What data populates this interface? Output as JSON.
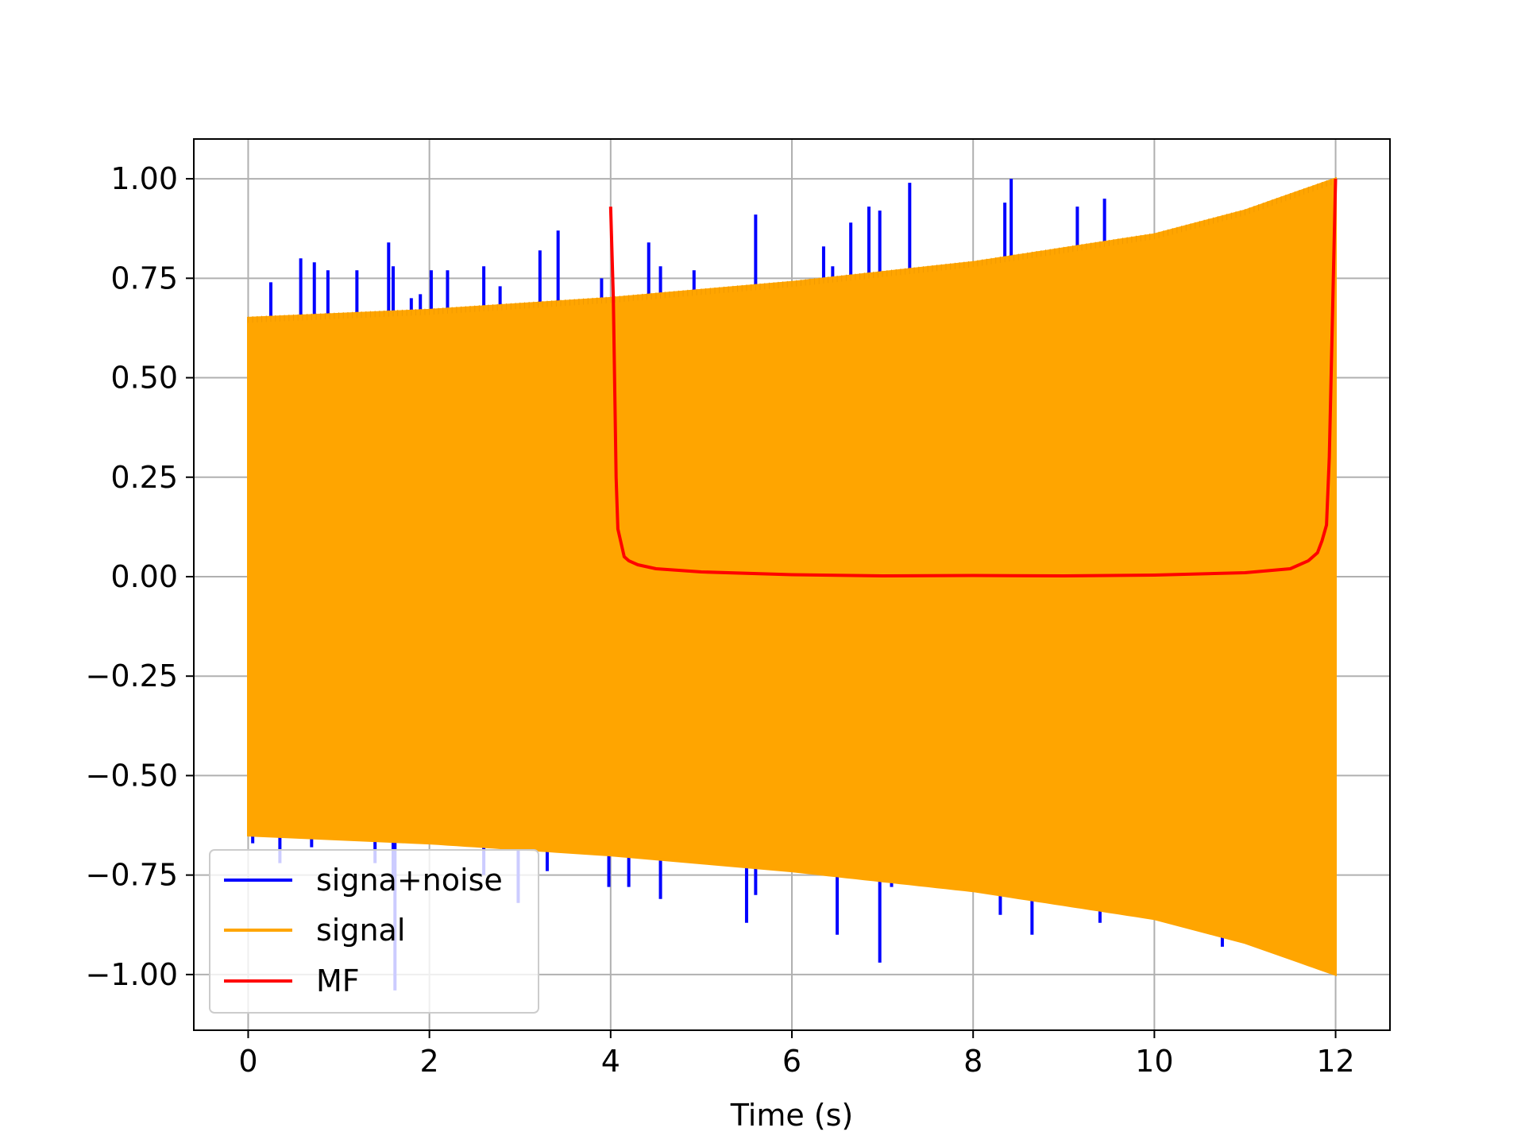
{
  "chart_data": {
    "type": "line",
    "title": "",
    "xlabel": "Time (s)",
    "ylabel": "",
    "xlim": [
      -0.6,
      12.6
    ],
    "ylim": [
      -1.14,
      1.1
    ],
    "xticks": [
      0,
      2,
      4,
      6,
      8,
      10,
      12
    ],
    "xtick_labels": [
      "0",
      "2",
      "4",
      "6",
      "8",
      "10",
      "12"
    ],
    "yticks": [
      1.0,
      0.75,
      0.5,
      0.25,
      0.0,
      -0.25,
      -0.5,
      -0.75,
      -1.0
    ],
    "ytick_labels": [
      "1.00",
      "0.75",
      "0.50",
      "0.25",
      "0.00",
      "−0.25",
      "−0.50",
      "−0.75",
      "−1.00"
    ],
    "grid": true,
    "legend_position": "lower-left",
    "series": [
      {
        "name": "signa+noise",
        "color": "#0000ff",
        "description_values": "impulsive noise spikes on top of the signal envelope",
        "spikes": [
          [
            0.25,
            0.74
          ],
          [
            0.58,
            0.8
          ],
          [
            0.73,
            0.79
          ],
          [
            0.88,
            0.77
          ],
          [
            1.2,
            0.77
          ],
          [
            1.55,
            0.84
          ],
          [
            1.6,
            0.78
          ],
          [
            1.8,
            0.7
          ],
          [
            1.9,
            0.71
          ],
          [
            2.02,
            0.77
          ],
          [
            2.2,
            0.77
          ],
          [
            2.6,
            0.78
          ],
          [
            2.78,
            0.73
          ],
          [
            3.22,
            0.82
          ],
          [
            3.42,
            0.87
          ],
          [
            3.9,
            0.75
          ],
          [
            4.42,
            0.84
          ],
          [
            4.55,
            0.78
          ],
          [
            4.92,
            0.77
          ],
          [
            5.6,
            0.91
          ],
          [
            6.35,
            0.83
          ],
          [
            6.45,
            0.78
          ],
          [
            6.65,
            0.89
          ],
          [
            6.85,
            0.93
          ],
          [
            6.97,
            0.92
          ],
          [
            7.3,
            0.99
          ],
          [
            8.35,
            0.94
          ],
          [
            8.42,
            1.0
          ],
          [
            9.15,
            0.93
          ],
          [
            9.45,
            0.95
          ],
          [
            0.05,
            -0.67
          ],
          [
            0.35,
            -0.72
          ],
          [
            0.7,
            -0.68
          ],
          [
            1.4,
            -0.72
          ],
          [
            1.6,
            -0.78
          ],
          [
            1.62,
            -1.04
          ],
          [
            2.6,
            -0.75
          ],
          [
            2.98,
            -0.82
          ],
          [
            3.3,
            -0.74
          ],
          [
            3.98,
            -0.78
          ],
          [
            4.2,
            -0.78
          ],
          [
            4.55,
            -0.81
          ],
          [
            5.5,
            -0.87
          ],
          [
            5.6,
            -0.8
          ],
          [
            6.5,
            -0.9
          ],
          [
            6.97,
            -0.97
          ],
          [
            7.1,
            -0.78
          ],
          [
            8.3,
            -0.85
          ],
          [
            8.65,
            -0.9
          ],
          [
            9.4,
            -0.87
          ],
          [
            10.75,
            -0.93
          ]
        ]
      },
      {
        "name": "signal",
        "color": "#ffa500",
        "x_range": [
          0,
          12
        ],
        "envelope": {
          "x": [
            0,
            2,
            4,
            6,
            8,
            10,
            11,
            12
          ],
          "amplitude": [
            0.65,
            0.67,
            0.7,
            0.74,
            0.79,
            0.86,
            0.92,
            1.0
          ]
        }
      },
      {
        "name": "MF",
        "color": "#ff0000",
        "x": [
          4.0,
          4.03,
          4.06,
          4.08,
          4.1,
          4.15,
          4.2,
          4.3,
          4.5,
          5.0,
          6.0,
          7.0,
          8.0,
          9.0,
          10.0,
          11.0,
          11.5,
          11.7,
          11.8,
          11.85,
          11.9,
          11.93,
          11.96,
          12.0
        ],
        "y": [
          0.93,
          0.7,
          0.25,
          0.12,
          0.1,
          0.05,
          0.04,
          0.03,
          0.02,
          0.012,
          0.005,
          0.002,
          0.003,
          0.002,
          0.004,
          0.01,
          0.02,
          0.04,
          0.06,
          0.09,
          0.13,
          0.3,
          0.6,
          1.0
        ]
      }
    ]
  }
}
